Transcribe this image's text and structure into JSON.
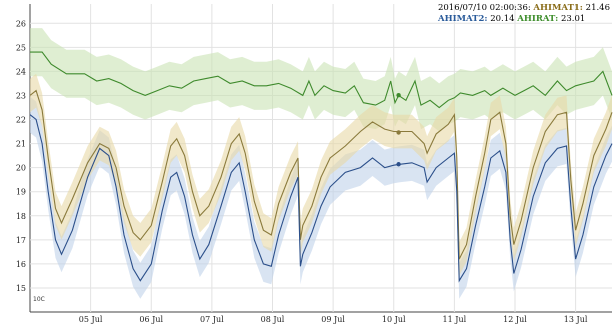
{
  "chart_data": {
    "type": "line",
    "title": "",
    "xlabel": "",
    "ylabel": "",
    "ylim": [
      14,
      26.8
    ],
    "yticks": [
      15,
      16,
      17,
      18,
      19,
      20,
      21,
      22,
      23,
      24,
      25,
      26
    ],
    "x_range_days": [
      4.0,
      13.6
    ],
    "xticks": [
      {
        "day": 5,
        "label": "05 Jul"
      },
      {
        "day": 6,
        "label": "06 Jul"
      },
      {
        "day": 7,
        "label": "07 Jul"
      },
      {
        "day": 8,
        "label": "08 Jul"
      },
      {
        "day": 9,
        "label": "09 Jul"
      },
      {
        "day": 10,
        "label": "10 Jul"
      },
      {
        "day": 11,
        "label": "11 Jul"
      },
      {
        "day": 12,
        "label": "12 Jul"
      },
      {
        "day": 13,
        "label": "13 Jul"
      }
    ],
    "grid": true,
    "legend_position": "top-right",
    "hover": {
      "timestamp": "2016/07/10 02:00:36:",
      "day": 10.08,
      "rows": [
        [
          {
            "label": "AHIMAT1:",
            "value": "21.46",
            "color": "#8a6d1a"
          }
        ],
        [
          {
            "label": "AHIMAT2:",
            "value": "20.14",
            "color": "#2a5b9a"
          },
          {
            "label": "AHIRAT:",
            "value": "23.01",
            "color": "#3e8e2c"
          }
        ]
      ]
    },
    "series": [
      {
        "name": "AHIMAT1",
        "color": "#8a7a3c",
        "band_color": "#e8d9a6",
        "band_width": 0.7,
        "points": [
          [
            4.0,
            23.0
          ],
          [
            4.1,
            23.2
          ],
          [
            4.2,
            22.4
          ],
          [
            4.3,
            20.4
          ],
          [
            4.42,
            18.3
          ],
          [
            4.52,
            17.7
          ],
          [
            4.7,
            18.7
          ],
          [
            4.95,
            20.2
          ],
          [
            5.15,
            21.0
          ],
          [
            5.3,
            20.8
          ],
          [
            5.42,
            20.0
          ],
          [
            5.55,
            18.4
          ],
          [
            5.7,
            17.3
          ],
          [
            5.82,
            17.0
          ],
          [
            6.0,
            17.6
          ],
          [
            6.18,
            19.4
          ],
          [
            6.32,
            20.9
          ],
          [
            6.42,
            21.2
          ],
          [
            6.55,
            20.5
          ],
          [
            6.68,
            19.0
          ],
          [
            6.8,
            18.0
          ],
          [
            6.95,
            18.4
          ],
          [
            7.15,
            19.6
          ],
          [
            7.32,
            21.0
          ],
          [
            7.45,
            21.4
          ],
          [
            7.55,
            20.6
          ],
          [
            7.7,
            18.6
          ],
          [
            7.85,
            17.4
          ],
          [
            7.98,
            17.2
          ],
          [
            8.1,
            18.5
          ],
          [
            8.3,
            19.8
          ],
          [
            8.42,
            20.4
          ],
          [
            8.46,
            17.0
          ],
          [
            8.5,
            17.6
          ],
          [
            8.65,
            18.4
          ],
          [
            8.8,
            19.6
          ],
          [
            8.95,
            20.4
          ],
          [
            9.2,
            20.9
          ],
          [
            9.45,
            21.5
          ],
          [
            9.65,
            21.9
          ],
          [
            9.85,
            21.6
          ],
          [
            10.0,
            21.5
          ],
          [
            10.1,
            21.5
          ],
          [
            10.3,
            21.5
          ],
          [
            10.5,
            21.0
          ],
          [
            10.55,
            20.6
          ],
          [
            10.7,
            21.4
          ],
          [
            10.9,
            21.8
          ],
          [
            11.0,
            22.2
          ],
          [
            11.04,
            20.4
          ],
          [
            11.08,
            16.2
          ],
          [
            11.2,
            16.8
          ],
          [
            11.35,
            18.8
          ],
          [
            11.5,
            20.6
          ],
          [
            11.6,
            22.0
          ],
          [
            11.75,
            22.3
          ],
          [
            11.85,
            21.0
          ],
          [
            11.92,
            18.0
          ],
          [
            11.98,
            16.8
          ],
          [
            12.1,
            17.8
          ],
          [
            12.3,
            20.0
          ],
          [
            12.5,
            21.5
          ],
          [
            12.7,
            22.2
          ],
          [
            12.85,
            22.3
          ],
          [
            12.92,
            19.5
          ],
          [
            13.0,
            17.4
          ],
          [
            13.12,
            18.5
          ],
          [
            13.3,
            20.5
          ],
          [
            13.5,
            21.6
          ],
          [
            13.6,
            22.3
          ]
        ]
      },
      {
        "name": "AHIMAT2",
        "color": "#2b4f8a",
        "band_color": "#bfd2ea",
        "band_width": 0.75,
        "points": [
          [
            4.0,
            22.2
          ],
          [
            4.1,
            22.0
          ],
          [
            4.2,
            21.0
          ],
          [
            4.3,
            19.0
          ],
          [
            4.42,
            17.0
          ],
          [
            4.52,
            16.4
          ],
          [
            4.7,
            17.4
          ],
          [
            4.95,
            19.6
          ],
          [
            5.15,
            20.8
          ],
          [
            5.3,
            20.5
          ],
          [
            5.42,
            19.2
          ],
          [
            5.55,
            17.2
          ],
          [
            5.7,
            15.8
          ],
          [
            5.82,
            15.3
          ],
          [
            6.0,
            16.0
          ],
          [
            6.18,
            18.2
          ],
          [
            6.32,
            19.6
          ],
          [
            6.42,
            19.8
          ],
          [
            6.55,
            18.8
          ],
          [
            6.68,
            17.2
          ],
          [
            6.8,
            16.2
          ],
          [
            6.95,
            16.8
          ],
          [
            7.15,
            18.4
          ],
          [
            7.32,
            19.8
          ],
          [
            7.45,
            20.2
          ],
          [
            7.55,
            19.0
          ],
          [
            7.7,
            17.0
          ],
          [
            7.85,
            16.0
          ],
          [
            7.98,
            15.9
          ],
          [
            8.1,
            17.2
          ],
          [
            8.3,
            18.8
          ],
          [
            8.42,
            19.6
          ],
          [
            8.46,
            15.9
          ],
          [
            8.5,
            16.4
          ],
          [
            8.65,
            17.3
          ],
          [
            8.8,
            18.4
          ],
          [
            8.95,
            19.2
          ],
          [
            9.2,
            19.8
          ],
          [
            9.45,
            20.0
          ],
          [
            9.65,
            20.4
          ],
          [
            9.85,
            20.0
          ],
          [
            10.0,
            20.1
          ],
          [
            10.1,
            20.14
          ],
          [
            10.3,
            20.2
          ],
          [
            10.5,
            20.0
          ],
          [
            10.55,
            19.4
          ],
          [
            10.7,
            20.0
          ],
          [
            10.9,
            20.4
          ],
          [
            11.0,
            20.6
          ],
          [
            11.04,
            19.0
          ],
          [
            11.08,
            15.3
          ],
          [
            11.2,
            15.8
          ],
          [
            11.35,
            17.6
          ],
          [
            11.5,
            19.2
          ],
          [
            11.6,
            20.4
          ],
          [
            11.75,
            20.7
          ],
          [
            11.85,
            19.8
          ],
          [
            11.92,
            17.0
          ],
          [
            11.98,
            15.6
          ],
          [
            12.1,
            16.6
          ],
          [
            12.3,
            18.8
          ],
          [
            12.5,
            20.2
          ],
          [
            12.7,
            20.8
          ],
          [
            12.85,
            20.9
          ],
          [
            12.92,
            18.4
          ],
          [
            13.0,
            16.2
          ],
          [
            13.12,
            17.2
          ],
          [
            13.3,
            19.2
          ],
          [
            13.5,
            20.5
          ],
          [
            13.6,
            21.0
          ]
        ]
      },
      {
        "name": "AHIRAT",
        "color": "#3e8a2c",
        "band_color": "#c9e3b4",
        "band_width": 1.0,
        "points": [
          [
            4.0,
            24.8
          ],
          [
            4.2,
            24.8
          ],
          [
            4.35,
            24.3
          ],
          [
            4.6,
            23.9
          ],
          [
            4.9,
            23.9
          ],
          [
            5.1,
            23.6
          ],
          [
            5.3,
            23.7
          ],
          [
            5.5,
            23.5
          ],
          [
            5.7,
            23.2
          ],
          [
            5.9,
            23.0
          ],
          [
            6.1,
            23.2
          ],
          [
            6.3,
            23.4
          ],
          [
            6.5,
            23.3
          ],
          [
            6.7,
            23.6
          ],
          [
            6.9,
            23.7
          ],
          [
            7.1,
            23.8
          ],
          [
            7.3,
            23.5
          ],
          [
            7.5,
            23.6
          ],
          [
            7.7,
            23.4
          ],
          [
            7.9,
            23.4
          ],
          [
            8.1,
            23.5
          ],
          [
            8.3,
            23.3
          ],
          [
            8.5,
            23.0
          ],
          [
            8.6,
            23.6
          ],
          [
            8.7,
            23.0
          ],
          [
            8.85,
            23.4
          ],
          [
            9.0,
            23.2
          ],
          [
            9.2,
            23.1
          ],
          [
            9.35,
            23.4
          ],
          [
            9.5,
            22.7
          ],
          [
            9.7,
            22.6
          ],
          [
            9.85,
            22.8
          ],
          [
            9.95,
            23.6
          ],
          [
            10.02,
            22.7
          ],
          [
            10.08,
            23.0
          ],
          [
            10.2,
            22.8
          ],
          [
            10.35,
            23.6
          ],
          [
            10.45,
            22.6
          ],
          [
            10.6,
            22.8
          ],
          [
            10.75,
            22.5
          ],
          [
            10.9,
            22.8
          ],
          [
            11.0,
            22.9
          ],
          [
            11.1,
            23.1
          ],
          [
            11.3,
            23.0
          ],
          [
            11.5,
            23.2
          ],
          [
            11.6,
            23.0
          ],
          [
            11.8,
            23.3
          ],
          [
            12.0,
            23.0
          ],
          [
            12.15,
            23.2
          ],
          [
            12.3,
            23.4
          ],
          [
            12.5,
            23.0
          ],
          [
            12.7,
            23.6
          ],
          [
            12.85,
            23.2
          ],
          [
            13.0,
            23.4
          ],
          [
            13.15,
            23.5
          ],
          [
            13.3,
            23.6
          ],
          [
            13.45,
            24.0
          ],
          [
            13.6,
            23.0
          ]
        ]
      }
    ]
  },
  "corner_badge": "10C"
}
